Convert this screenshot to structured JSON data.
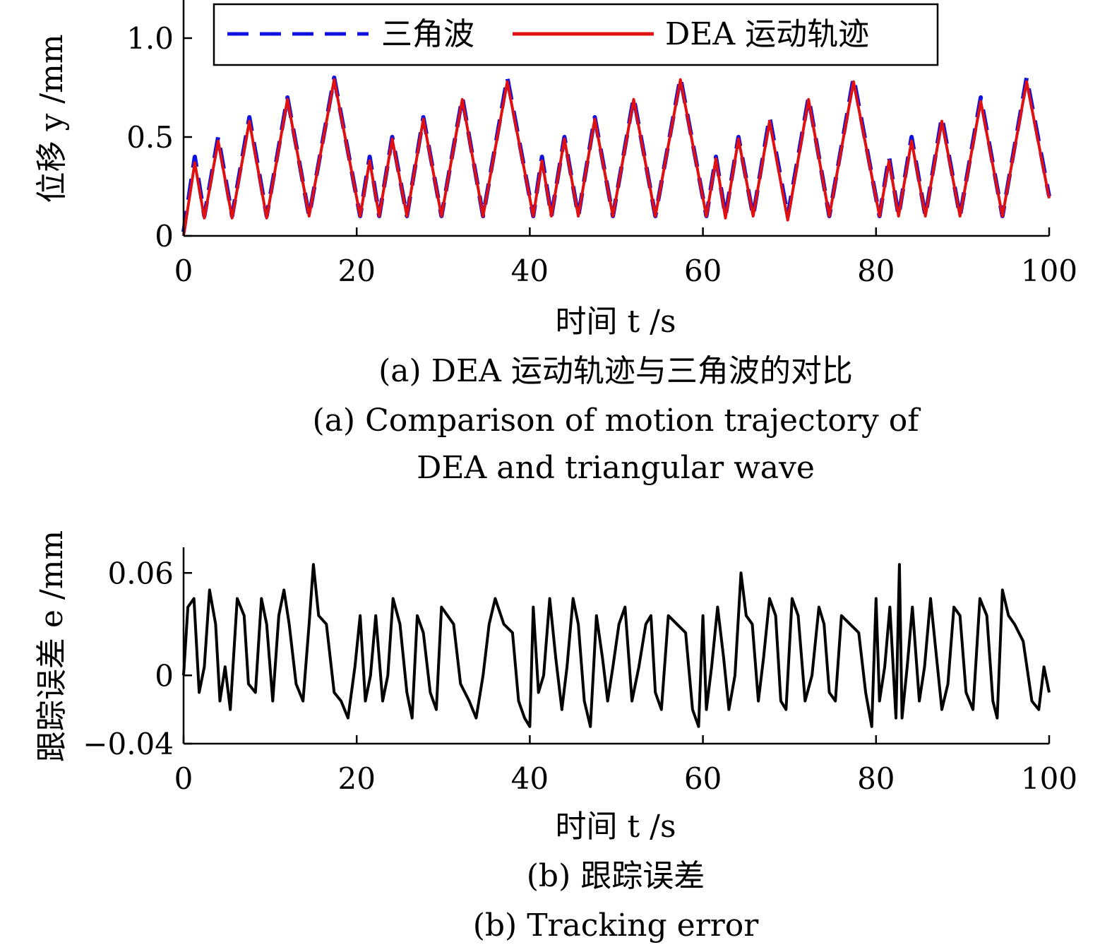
{
  "chart_data": [
    {
      "type": "line",
      "xlabel": "时间 t /s",
      "ylabel": "位移 y /mm",
      "xlim": [
        0,
        100
      ],
      "ylim": [
        0,
        1.05
      ],
      "xticks": [
        0,
        20,
        40,
        60,
        80,
        100
      ],
      "xtick_labels": [
        "0",
        "20",
        "40",
        "60",
        "80",
        "100"
      ],
      "yticks": [
        0,
        0.5,
        1.0
      ],
      "ytick_labels": [
        "0",
        "0.5",
        "1.0"
      ],
      "legend_position": "top",
      "captions": [
        "(a) DEA 运动轨迹与三角波的对比",
        "(a) Comparison of motion trajectory of",
        "DEA and triangular wave"
      ],
      "series": [
        {
          "name": "三角波",
          "color": "#1010e0",
          "style": "dashed",
          "x": [
            0,
            1.3,
            2.4,
            4.0,
            5.6,
            7.6,
            9.6,
            12.0,
            14.5,
            17.4,
            20.4,
            21.5,
            22.6,
            24.1,
            25.8,
            27.7,
            29.8,
            32.2,
            34.6,
            37.4,
            40.4,
            41.4,
            42.5,
            44.0,
            45.6,
            47.5,
            49.6,
            52.0,
            54.5,
            57.4,
            60.4,
            61.5,
            62.6,
            64.1,
            65.8,
            67.7,
            69.8,
            72.2,
            74.6,
            77.4,
            80.4,
            81.5,
            82.6,
            84.1,
            85.7,
            87.6,
            89.7,
            92.1,
            94.6,
            97.4,
            100
          ],
          "y": [
            0.02,
            0.4,
            0.1,
            0.5,
            0.1,
            0.6,
            0.1,
            0.7,
            0.1,
            0.8,
            0.1,
            0.4,
            0.1,
            0.5,
            0.1,
            0.6,
            0.1,
            0.7,
            0.1,
            0.8,
            0.1,
            0.4,
            0.1,
            0.5,
            0.1,
            0.6,
            0.1,
            0.7,
            0.1,
            0.8,
            0.1,
            0.4,
            0.1,
            0.5,
            0.1,
            0.6,
            0.1,
            0.7,
            0.1,
            0.8,
            0.1,
            0.4,
            0.1,
            0.5,
            0.1,
            0.6,
            0.1,
            0.7,
            0.1,
            0.8,
            0.2
          ]
        },
        {
          "name": "DEA 运动轨迹",
          "color": "#e01010",
          "style": "solid",
          "x": [
            0,
            1.3,
            2.4,
            4.0,
            5.6,
            7.6,
            9.6,
            12.0,
            14.5,
            17.4,
            20.4,
            21.5,
            22.6,
            24.1,
            25.8,
            27.7,
            29.8,
            32.2,
            34.6,
            37.4,
            40.4,
            41.4,
            42.5,
            44.0,
            45.6,
            47.5,
            49.6,
            52.0,
            54.5,
            57.4,
            60.4,
            61.5,
            62.6,
            64.1,
            65.8,
            67.7,
            69.8,
            72.2,
            74.6,
            77.4,
            80.4,
            81.5,
            82.6,
            84.1,
            85.7,
            87.6,
            89.7,
            92.1,
            94.6,
            97.4,
            100
          ],
          "y": [
            0.0,
            0.37,
            0.09,
            0.48,
            0.09,
            0.58,
            0.09,
            0.69,
            0.1,
            0.79,
            0.1,
            0.38,
            0.1,
            0.49,
            0.1,
            0.59,
            0.1,
            0.69,
            0.1,
            0.78,
            0.1,
            0.38,
            0.1,
            0.49,
            0.1,
            0.59,
            0.1,
            0.69,
            0.1,
            0.79,
            0.1,
            0.39,
            0.09,
            0.49,
            0.1,
            0.58,
            0.08,
            0.69,
            0.1,
            0.78,
            0.1,
            0.38,
            0.1,
            0.48,
            0.1,
            0.58,
            0.1,
            0.68,
            0.1,
            0.78,
            0.19
          ]
        }
      ]
    },
    {
      "type": "line",
      "xlabel": "时间 t /s",
      "ylabel": "跟踪误差 e /mm",
      "xlim": [
        0,
        100
      ],
      "ylim": [
        -0.04,
        0.075
      ],
      "xticks": [
        0,
        20,
        40,
        60,
        80,
        100
      ],
      "xtick_labels": [
        "0",
        "20",
        "40",
        "60",
        "80",
        "100"
      ],
      "yticks": [
        -0.04,
        0,
        0.06
      ],
      "ytick_labels": [
        "−0.04",
        "0",
        "0.06"
      ],
      "captions": [
        "(b) 跟踪误差",
        "(b) Tracking error"
      ],
      "series": [
        {
          "color": "#000000",
          "style": "solid",
          "x": [
            0,
            0.5,
            1.2,
            1.8,
            2.4,
            3.0,
            3.7,
            4.2,
            4.8,
            5.4,
            6.2,
            7.0,
            7.5,
            8.3,
            9.0,
            9.6,
            10.3,
            11.0,
            11.6,
            12.2,
            13.0,
            13.8,
            14.5,
            15.0,
            15.6,
            16.5,
            17.4,
            18.2,
            19.0,
            19.8,
            20.4,
            21.0,
            21.6,
            22.2,
            23.0,
            23.6,
            24.2,
            25.0,
            25.8,
            26.4,
            27.0,
            27.7,
            28.5,
            29.2,
            29.8,
            30.5,
            31.2,
            32.0,
            33.0,
            33.8,
            34.6,
            35.3,
            36.0,
            37.0,
            38.0,
            38.7,
            39.4,
            40.0,
            40.4,
            41.0,
            41.6,
            42.3,
            43.0,
            43.7,
            44.3,
            45.0,
            45.6,
            46.3,
            47.0,
            47.7,
            48.4,
            49.0,
            49.6,
            50.3,
            51.0,
            51.8,
            52.6,
            53.4,
            54.0,
            54.5,
            55.2,
            56.0,
            57.0,
            58.0,
            58.8,
            59.5,
            60.0,
            60.4,
            61.0,
            61.7,
            62.4,
            63.0,
            63.7,
            64.4,
            65.0,
            65.7,
            66.4,
            67.0,
            67.7,
            68.4,
            69.0,
            69.6,
            70.3,
            71.0,
            71.8,
            72.6,
            73.4,
            74.0,
            74.6,
            75.3,
            76.0,
            77.0,
            78.0,
            78.8,
            79.5,
            80.0,
            80.4,
            81.0,
            81.6,
            82.3,
            82.7,
            83.0,
            83.6,
            84.2,
            85.0,
            85.6,
            86.3,
            87.0,
            87.6,
            88.3,
            89.0,
            89.7,
            90.4,
            91.2,
            92.0,
            92.8,
            93.5,
            94.0,
            94.6,
            95.3,
            96.0,
            97.0,
            98.0,
            98.8,
            99.4,
            100
          ],
          "y": [
            0.0,
            0.04,
            0.045,
            -0.01,
            0.005,
            0.05,
            0.03,
            -0.015,
            0.005,
            -0.02,
            0.045,
            0.035,
            -0.005,
            -0.01,
            0.045,
            0.03,
            -0.015,
            0.035,
            0.05,
            0.03,
            -0.005,
            -0.015,
            0.03,
            0.065,
            0.035,
            0.03,
            -0.01,
            -0.015,
            -0.025,
            0.005,
            0.035,
            -0.015,
            0.0,
            0.035,
            -0.015,
            0.0,
            0.045,
            0.03,
            -0.01,
            -0.025,
            0.035,
            0.025,
            -0.01,
            -0.02,
            0.04,
            0.035,
            0.03,
            -0.005,
            -0.015,
            -0.025,
            0.0,
            0.03,
            0.045,
            0.03,
            0.025,
            -0.015,
            -0.025,
            -0.03,
            0.04,
            -0.01,
            0.0,
            0.045,
            0.01,
            -0.02,
            0.005,
            0.045,
            0.03,
            -0.015,
            -0.03,
            0.035,
            0.01,
            -0.015,
            0.005,
            0.03,
            0.04,
            -0.015,
            0.005,
            0.03,
            0.035,
            -0.01,
            -0.02,
            0.035,
            0.03,
            0.025,
            -0.02,
            -0.03,
            0.035,
            -0.02,
            0.005,
            0.04,
            0.01,
            -0.02,
            0.0,
            0.06,
            0.035,
            0.03,
            -0.015,
            0.01,
            0.045,
            0.035,
            -0.015,
            -0.02,
            0.045,
            0.035,
            -0.015,
            0.0,
            0.04,
            0.03,
            -0.01,
            -0.015,
            0.035,
            0.03,
            0.025,
            -0.01,
            -0.03,
            0.045,
            -0.015,
            0.005,
            0.04,
            -0.025,
            0.065,
            -0.025,
            0.005,
            0.04,
            -0.015,
            0.005,
            0.045,
            0.01,
            -0.02,
            -0.005,
            0.04,
            0.035,
            -0.01,
            -0.02,
            0.045,
            0.035,
            -0.015,
            -0.025,
            0.05,
            0.035,
            0.03,
            0.02,
            -0.015,
            -0.02,
            0.005,
            -0.01
          ]
        }
      ]
    }
  ]
}
